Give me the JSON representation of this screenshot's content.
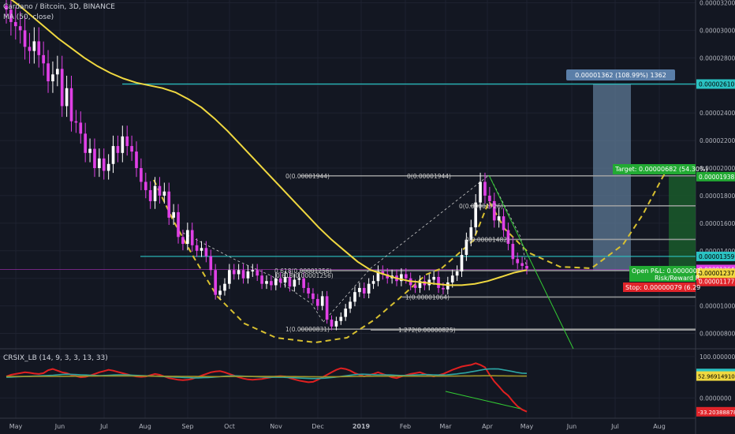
{
  "header": {
    "symbol_line": "Cardano / Bitcoin, 3D, BINANCE",
    "ma_label": "MA (50, close)",
    "osc_label": "CRSIX_LB (14, 9, 3, 3, 13, 33)"
  },
  "colors": {
    "background": "#131722",
    "candle_up": "#ffffff",
    "candle_down": "#e040e6",
    "ma": "#f0d840",
    "teal_level": "#2bc3c3",
    "fib": "#a8a8a8",
    "dashed_pattern": "#d8c030",
    "green_line": "#33cc33",
    "measure_box": "#5d7a96",
    "target_box": "#1a5a2a",
    "stop_box": "#e0242a"
  },
  "chart_data": [
    {
      "type": "candlestick",
      "title": "Cardano / Bitcoin, 3D, BINANCE",
      "x_ticks": [
        "May",
        "Jun",
        "Jul",
        "Aug",
        "Sep",
        "Oct",
        "Nov",
        "Dec",
        "2019",
        "Feb",
        "Mar",
        "Apr",
        "May",
        "Jun",
        "Jul",
        "Aug"
      ],
      "y_ticks": [
        "0.00003200",
        "0.00003000",
        "0.00002800",
        "0.00002600",
        "0.00002400",
        "0.00002200",
        "0.00002000",
        "0.00001800",
        "0.00001600",
        "0.00001400",
        "0.00001200",
        "0.00001000",
        "0.00000800"
      ],
      "ylim": [
        7e-06,
        3.22e-05
      ],
      "close_series": [
        3.15e-05,
        3.06e-05,
        3.03e-05,
        3e-05,
        2.88e-05,
        2.85e-05,
        2.92e-05,
        2.82e-05,
        2.76e-05,
        2.63e-05,
        2.68e-05,
        2.72e-05,
        2.45e-05,
        2.58e-05,
        2.34e-05,
        2.33e-05,
        2.25e-05,
        2.11e-05,
        2.14e-05,
        2e-05,
        2.07e-05,
        1.98e-05,
        2.03e-05,
        2.16e-05,
        2.11e-05,
        2.23e-05,
        2.16e-05,
        2.12e-05,
        2e-05,
        1.9e-05,
        1.84e-05,
        1.76e-05,
        1.87e-05,
        1.8e-05,
        1.83e-05,
        1.64e-05,
        1.68e-05,
        1.5e-05,
        1.45e-05,
        1.55e-05,
        1.44e-05,
        1.4e-05,
        1.42e-05,
        1.36e-05,
        1.26e-05,
        1.08e-05,
        1.11e-05,
        1.16e-05,
        1.26e-05,
        1.23e-05,
        1.26e-05,
        1.2e-05,
        1.25e-05,
        1.26e-05,
        1.22e-05,
        1.16e-05,
        1.18e-05,
        1.15e-05,
        1.2e-05,
        1.17e-05,
        1.21e-05,
        1.14e-05,
        1.19e-05,
        1.2e-05,
        1.13e-05,
        1.09e-05,
        1.05e-05,
        1e-05,
        1.07e-05,
        9e-06,
        8.5e-06,
        8.9e-06,
        9.2e-06,
        9.8e-06,
        1.03e-05,
        1.1e-05,
        1.13e-05,
        1.09e-05,
        1.16e-05,
        1.18e-05,
        1.25e-05,
        1.23e-05,
        1.2e-05,
        1.22e-05,
        1.18e-05,
        1.23e-05,
        1.2e-05,
        1.15e-05,
        1.13e-05,
        1.18e-05,
        1.15e-05,
        1.19e-05,
        1.21e-05,
        1.13e-05,
        1.12e-05,
        1.17e-05,
        1.22e-05,
        1.25e-05,
        1.37e-05,
        1.48e-05,
        1.57e-05,
        1.75e-05,
        1.9e-05,
        1.8e-05,
        1.76e-05,
        1.62e-05,
        1.65e-05,
        1.55e-05,
        1.45e-05,
        1.34e-05,
        1.31e-05,
        1.29e-05,
        1.27e-05
      ],
      "ma_series": [
        3.25e-05,
        3.18e-05,
        3.1e-05,
        3.02e-05,
        2.94e-05,
        2.87e-05,
        2.8e-05,
        2.74e-05,
        2.69e-05,
        2.65e-05,
        2.62e-05,
        2.6e-05,
        2.58e-05,
        2.55e-05,
        2.5e-05,
        2.44e-05,
        2.36e-05,
        2.27e-05,
        2.17e-05,
        2.07e-05,
        1.97e-05,
        1.87e-05,
        1.77e-05,
        1.67e-05,
        1.57e-05,
        1.48e-05,
        1.4e-05,
        1.32e-05,
        1.26e-05,
        1.23e-05,
        1.2e-05,
        1.18e-05,
        1.17e-05,
        1.16e-05,
        1.15e-05,
        1.15e-05,
        1.16e-05,
        1.18e-05,
        1.21e-05,
        1.24e-05,
        1.26e-05
      ],
      "horizontal_levels": [
        {
          "value": 2.61e-05,
          "kind": "teal"
        },
        {
          "value": 1.359e-05,
          "kind": "teal"
        },
        {
          "value": 1.944e-05,
          "kind": "fib",
          "label": "0(0.00001944)"
        },
        {
          "value": 1.256e-05,
          "kind": "fib",
          "label": "0.618(0.00001256)"
        },
        {
          "value": 8.31e-06,
          "kind": "fib",
          "label": "1(0.00000831)"
        },
        {
          "value": 1.064e-05,
          "kind": "fib",
          "label": "1(0.00001064)"
        },
        {
          "value": 8.25e-06,
          "kind": "fib",
          "label": "1.272(0.00000825)"
        },
        {
          "value": 1.482e-05,
          "kind": "fib",
          "label": "0(0.00001482)"
        },
        {
          "value": 1.726e-05,
          "kind": "fib",
          "label": "0(0.00001726)"
        }
      ],
      "price_tags": [
        {
          "value": 2.61e-05,
          "label": "0.00002610",
          "kind": "teal"
        },
        {
          "value": 1.938e-05,
          "label": "0.00001938",
          "kind": "green"
        },
        {
          "value": 1.256e-05,
          "label": "0.00001256",
          "kind": "white"
        },
        {
          "value": 1.177e-05,
          "label": "0.00001177",
          "kind": "red"
        },
        {
          "value": 1.359e-05,
          "label": "0.00001359",
          "kind": "teal"
        },
        {
          "value": 1.264e-05,
          "label": "0.00001264",
          "kind": "magenta"
        },
        {
          "value": 1.237e-05,
          "label": "0.00001237",
          "kind": "yellow"
        }
      ],
      "annotations": {
        "measure": "0.00001362 (108.99%) 1362",
        "target": "Target: 0.00000682 (54.30%)",
        "open_pnl": "Open P&L: 0.0000001",
        "risk_reward": "Risk/Reward R",
        "stop": "Stop: 0.00000079 (6.29"
      }
    },
    {
      "type": "line",
      "title": "CRSIX_LB (14, 9, 3, 3, 13, 33)",
      "y_ticks": [
        "100.0000000",
        "0.0000000"
      ],
      "ylim": [
        -45,
        115
      ],
      "series": [
        {
          "color": "#e02020",
          "values": [
            52,
            56,
            58,
            60,
            62,
            61,
            59,
            58,
            60,
            67,
            70,
            66,
            62,
            60,
            56,
            53,
            50,
            51,
            54,
            58,
            62,
            65,
            68,
            66,
            63,
            60,
            57,
            54,
            52,
            51,
            52,
            55,
            58,
            56,
            52,
            48,
            46,
            44,
            43,
            44,
            46,
            50,
            54,
            58,
            62,
            64,
            65,
            62,
            58,
            54,
            50,
            47,
            45,
            44,
            45,
            46,
            48,
            50,
            52,
            53,
            52,
            48,
            45,
            42,
            40,
            38,
            39,
            44,
            50,
            56,
            62,
            68,
            72,
            70,
            66,
            60,
            56,
            52,
            55,
            58,
            62,
            58,
            54,
            50,
            48,
            52,
            55,
            58,
            60,
            62,
            58,
            54,
            52,
            55,
            58,
            63,
            68,
            72,
            76,
            78,
            80,
            84,
            80,
            74,
            56,
            40,
            28,
            15,
            6,
            -8,
            -20,
            -28,
            -33
          ]
        },
        {
          "color": "#2ca6a4",
          "values": [
            50,
            50.5,
            51,
            51.5,
            52,
            52.5,
            53,
            53.5,
            54,
            54.5,
            55,
            56,
            57,
            57.5,
            57,
            56.5,
            56,
            55.5,
            55,
            54.5,
            54,
            54.5,
            55,
            55.5,
            56,
            56,
            55.5,
            55,
            54.5,
            54,
            53.5,
            53,
            52.5,
            52,
            51.5,
            51,
            50.5,
            50,
            49.5,
            49,
            48.5,
            48.5,
            49,
            49.5,
            50,
            51,
            52,
            53,
            53.5,
            53.5,
            53,
            52.5,
            52,
            51.5,
            51,
            50.5,
            50,
            50,
            50,
            50,
            49.5,
            49,
            48.5,
            48,
            47.5,
            47,
            47,
            47.5,
            48,
            49,
            50,
            51.5,
            53,
            54.5,
            56,
            57,
            57.5,
            57,
            56.5,
            56,
            56,
            56,
            55.5,
            55,
            54.5,
            54.5,
            55,
            55.5,
            56,
            56.5,
            56.5,
            56,
            55.5,
            55.5,
            56,
            57,
            58,
            59.5,
            61,
            63,
            65,
            67,
            69,
            70,
            70.5,
            70,
            68,
            66,
            64,
            61.5,
            60,
            59.3
          ]
        },
        {
          "color": "#a09428",
          "values": [
            52,
            52,
            52,
            52,
            52,
            52,
            52.1,
            52.1,
            52.1,
            52.2,
            52.2,
            52.3,
            52.4,
            52.5,
            52.6,
            52.7,
            52.8,
            52.9,
            53,
            53,
            53.1,
            53.1,
            53.2,
            53.2,
            53.2,
            53.2,
            53.2,
            53.1,
            53.1,
            53,
            52.9,
            52.8,
            52.7,
            52.6,
            52.5,
            52.4,
            52.3,
            52.2,
            52.1,
            52,
            51.9,
            51.8,
            51.7,
            51.6,
            51.6,
            51.6,
            51.7,
            51.8,
            51.9,
            52,
            52,
            52,
            52,
            52,
            52,
            52,
            52,
            52,
            52,
            51.9,
            51.8,
            51.7,
            51.6,
            51.5,
            51.4,
            51.3,
            51.2,
            51.2,
            51.2,
            51.3,
            51.4,
            51.5,
            51.7,
            51.9,
            52.1,
            52.3,
            52.5,
            52.6,
            52.7,
            52.7,
            52.7,
            52.7,
            52.7,
            52.7,
            52.7,
            52.7,
            52.7,
            52.7,
            52.7,
            52.7,
            52.7,
            52.7,
            52.7,
            52.8,
            52.9,
            53,
            53.1,
            53.2,
            53.3,
            53.4,
            53.5,
            53.6,
            53.6,
            53.6,
            53.5,
            53.4,
            53.3,
            53.2,
            53.1,
            53,
            52.97
          ]
        }
      ],
      "price_tags": [
        {
          "value": 59.28146187,
          "label": "59.28146187",
          "kind": "teal"
        },
        {
          "value": 52.9691491,
          "label": "52.96914910",
          "kind": "yellow"
        },
        {
          "value": -33.20388878,
          "label": "-33.20388878",
          "kind": "red"
        }
      ]
    }
  ]
}
